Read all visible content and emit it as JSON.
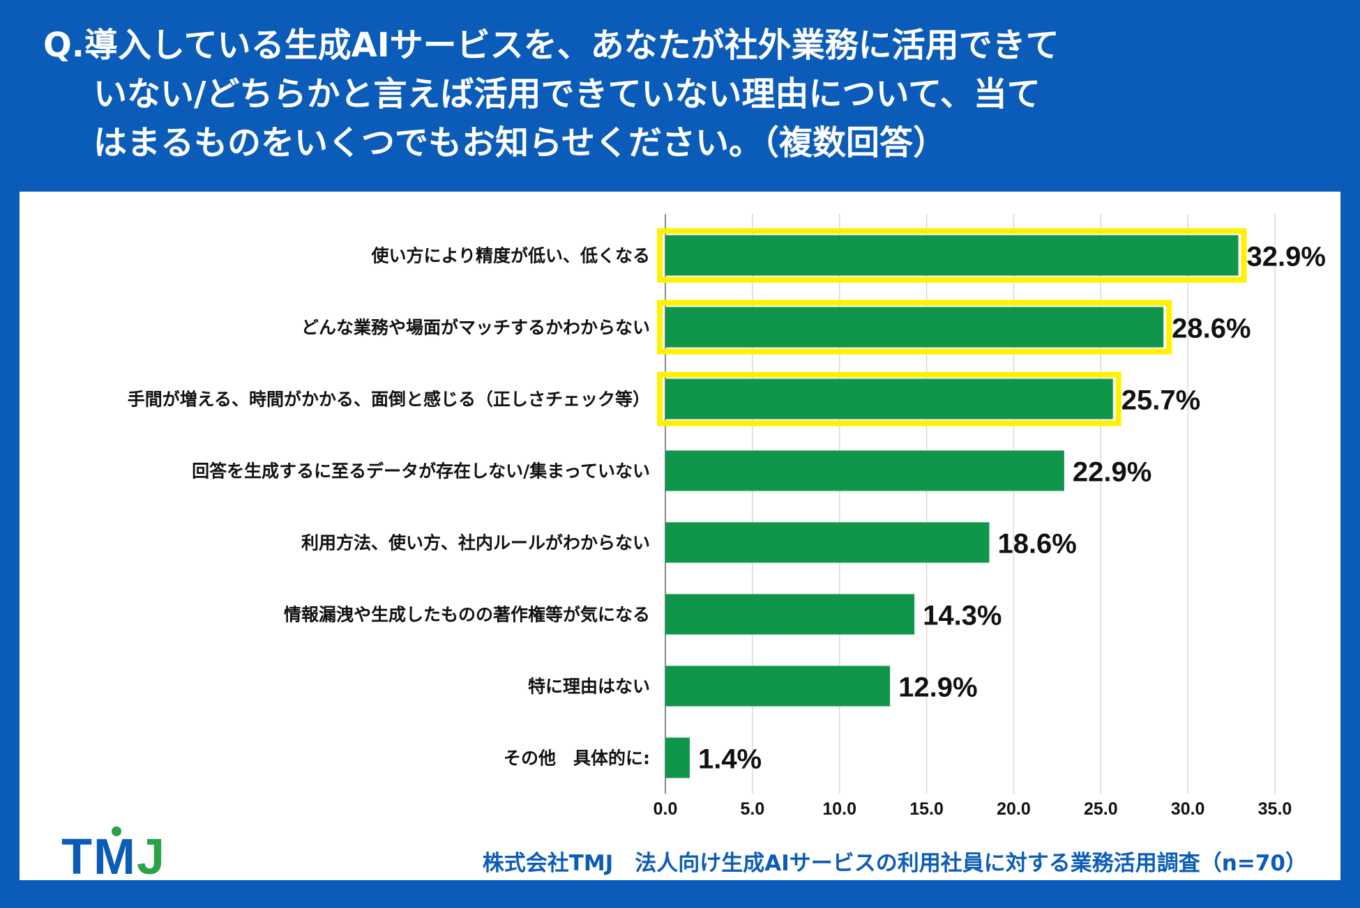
{
  "title": {
    "line1": "Q.導入している生成AIサービスを、あなたが社外業務に活用できて",
    "line2": "いない/どちらかと言えば活用できていない理由について、当て",
    "line3": "はまるものをいくつでもお知らせください。（複数回答）"
  },
  "footer": {
    "logo_t": "T",
    "logo_m": "M",
    "logo_j": "J",
    "source": "株式会社TMJ　法人向け生成AIサービスの利用社員に対する業務活用調査（n=70）"
  },
  "colors": {
    "background": "#0b5cb8",
    "bar": "#0f964a",
    "highlight": "#fff200",
    "logo_green": "#2aa347"
  },
  "chart_data": {
    "type": "bar",
    "orientation": "horizontal",
    "categories": [
      "使い方により精度が低い、低くなる",
      "どんな業務や場面がマッチするかわからない",
      "手間が増える、時間がかかる、面倒と感じる（正しさチェック等）",
      "回答を生成するに至るデータが存在しない/集まっていない",
      "利用方法、使い方、社内ルールがわからない",
      "情報漏洩や生成したものの著作権等が気になる",
      "特に理由はない",
      "その他　具体的に:"
    ],
    "values": [
      32.9,
      28.6,
      25.7,
      22.9,
      18.6,
      14.3,
      12.9,
      1.4
    ],
    "value_labels": [
      "32.9%",
      "28.6%",
      "25.7%",
      "22.9%",
      "18.6%",
      "14.3%",
      "12.9%",
      "1.4%"
    ],
    "highlighted": [
      true,
      true,
      true,
      false,
      false,
      false,
      false,
      false
    ],
    "xlim": [
      0,
      35
    ],
    "xticks": [
      0,
      5,
      10,
      15,
      20,
      25,
      30,
      35
    ],
    "xtick_labels": [
      "0.0",
      "5.0",
      "10.0",
      "15.0",
      "20.0",
      "25.0",
      "30.0",
      "35.0"
    ],
    "grid": true,
    "unit": "%"
  }
}
